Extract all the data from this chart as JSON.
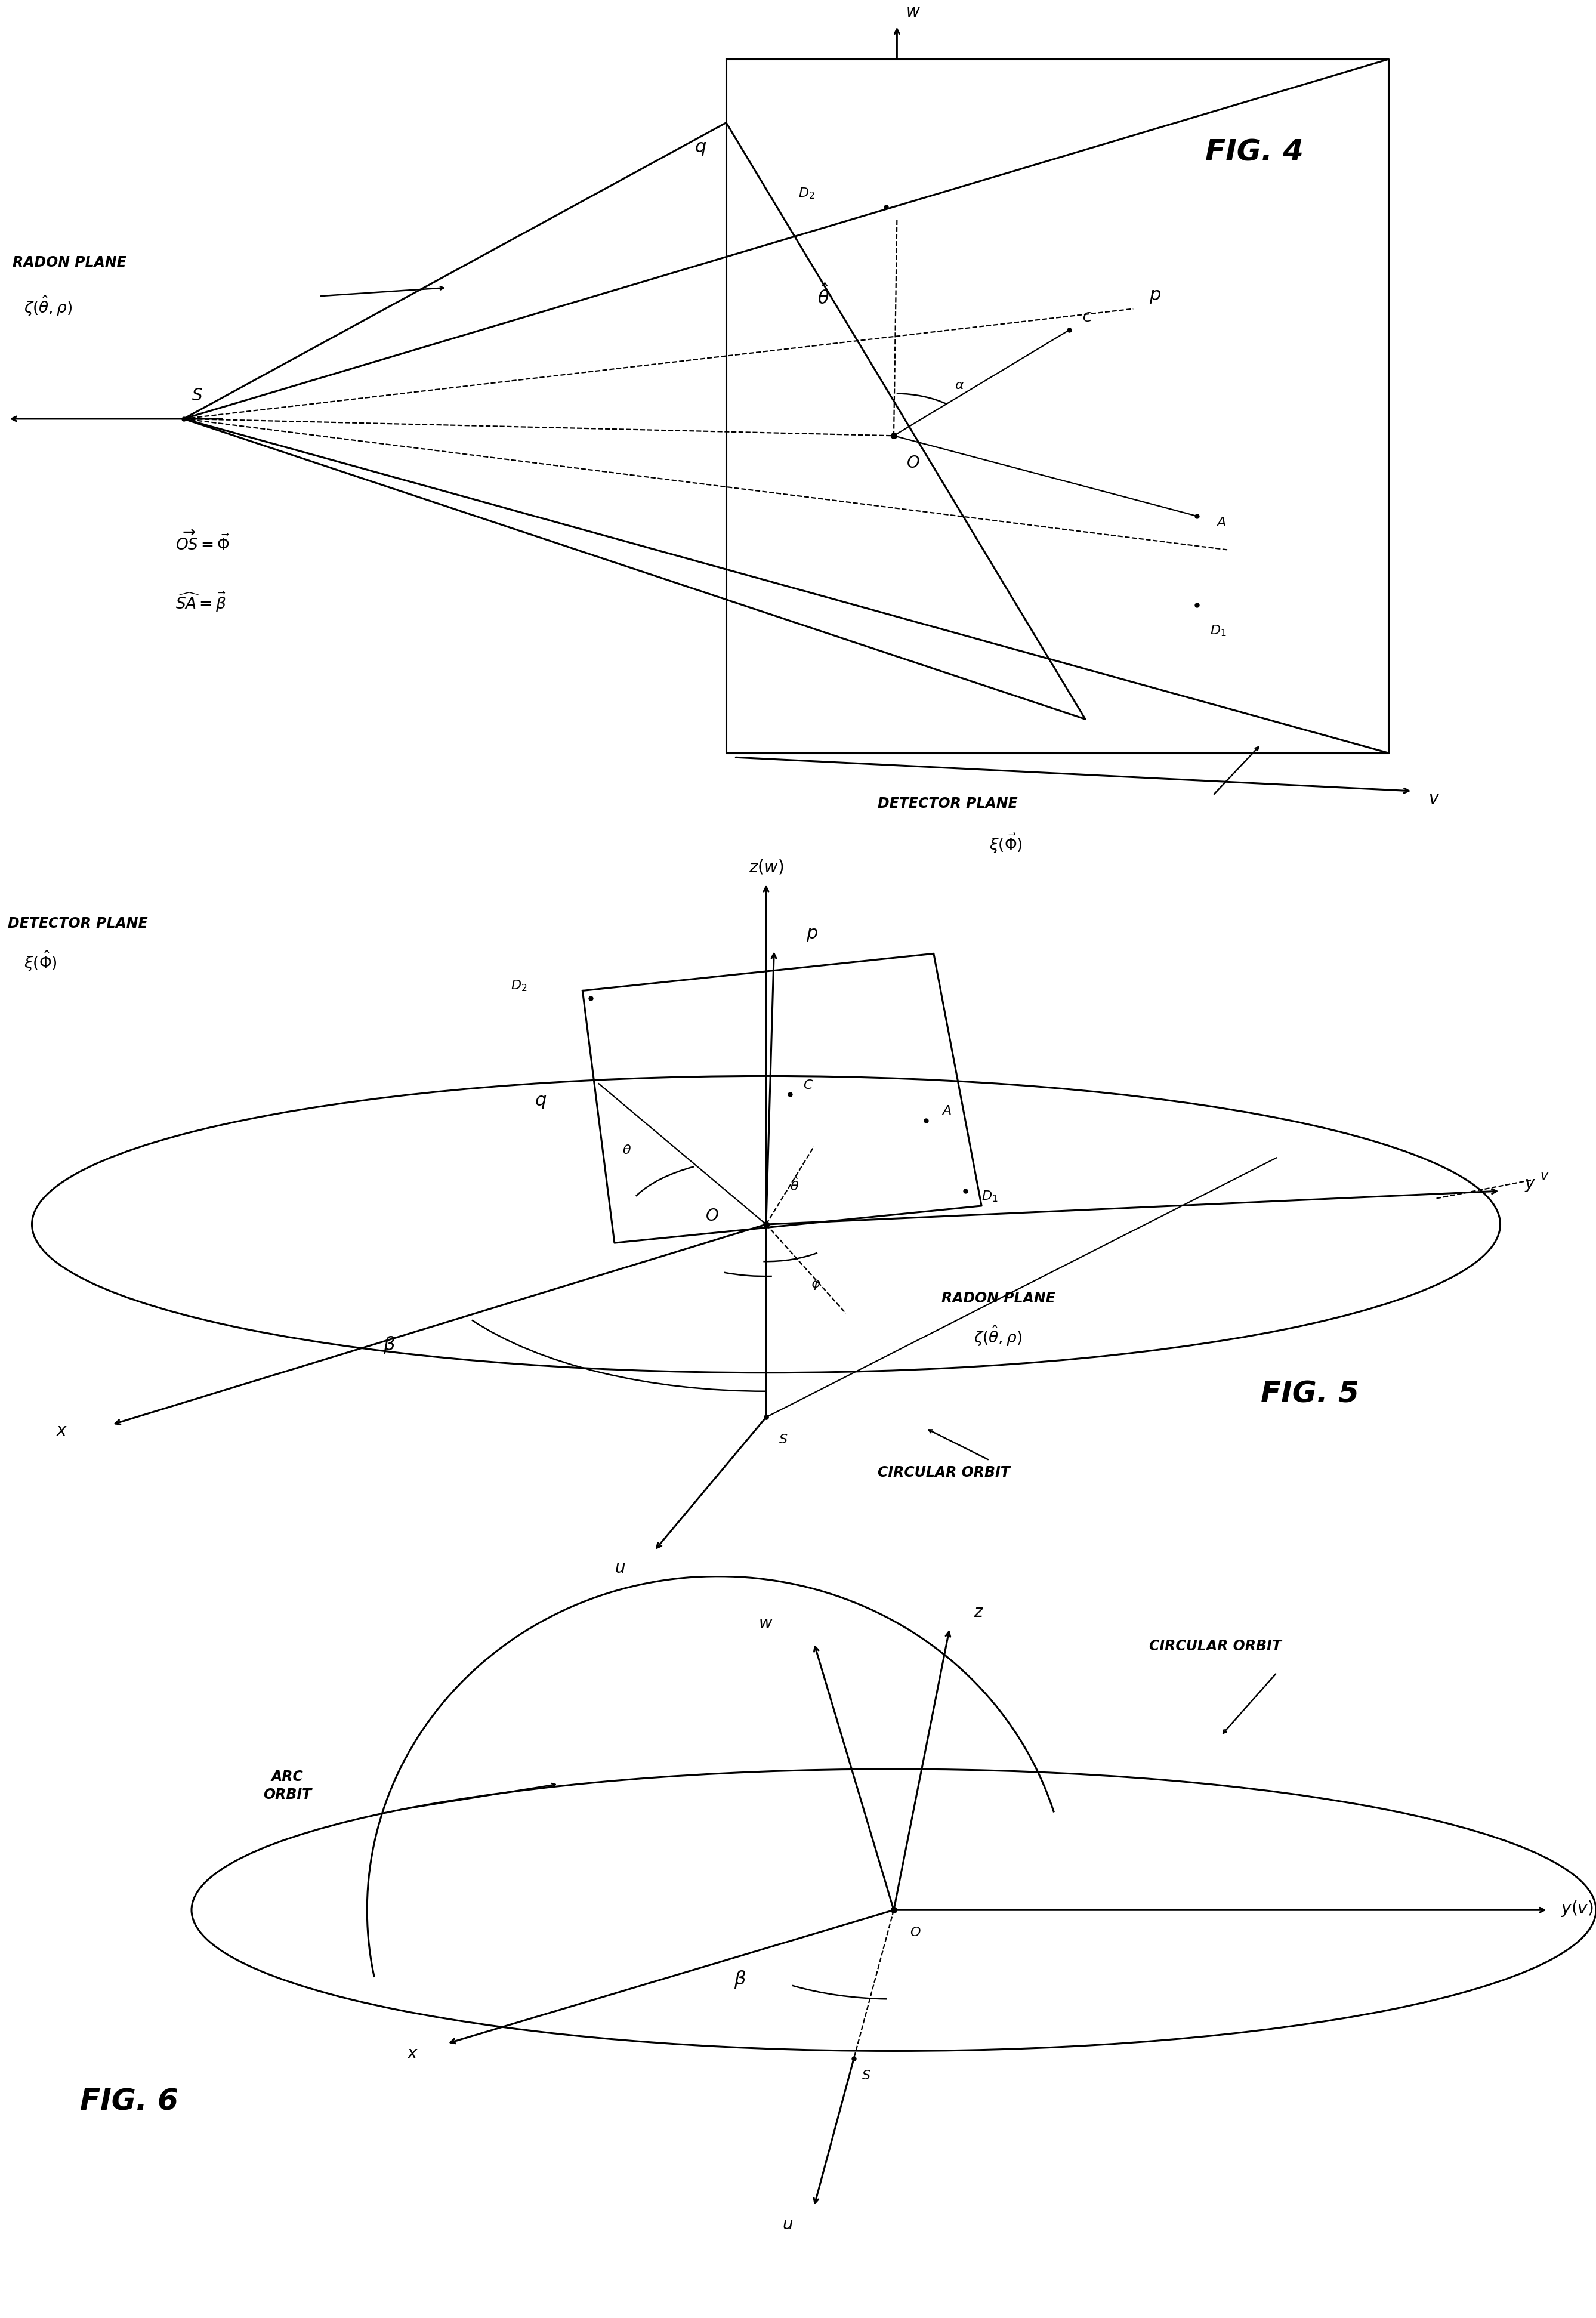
{
  "fig_label_fontsize": 36,
  "axis_label_fontsize": 20,
  "annotation_fontsize": 17,
  "small_label_fontsize": 16,
  "background_color": "#ffffff",
  "line_color": "#000000",
  "fig4_title": "FIG. 4",
  "fig5_title": "FIG. 5",
  "fig6_title": "FIG. 6",
  "lw_main": 2.2,
  "lw_thin": 1.6,
  "lw_dash": 1.6
}
